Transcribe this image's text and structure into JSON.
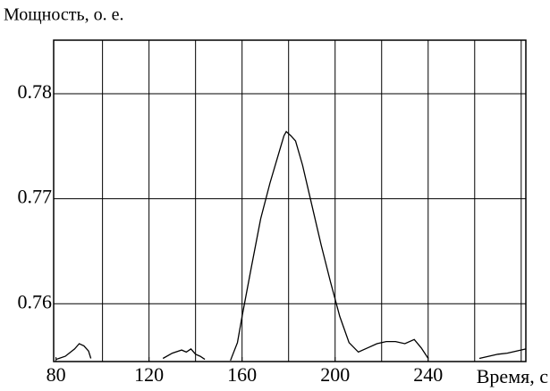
{
  "chart_data": {
    "type": "line",
    "ylabel": "Мощность, о. е.",
    "xlabel": "Время, с",
    "x": [
      80,
      84,
      88,
      90,
      92,
      94,
      95,
      null,
      126,
      130,
      134,
      136,
      138,
      140,
      142,
      144,
      null,
      155,
      158,
      160,
      164,
      168,
      172,
      176,
      178,
      179,
      181,
      183,
      186,
      190,
      194,
      198,
      202,
      206,
      210,
      214,
      218,
      222,
      226,
      230,
      234,
      237,
      240,
      null,
      262,
      266,
      270,
      274,
      278,
      282
    ],
    "series": [
      {
        "color": "#000000",
        "values": [
          0.7547,
          0.755,
          0.7557,
          0.7562,
          0.756,
          0.7555,
          0.7548,
          null,
          0.7548,
          0.7553,
          0.7556,
          0.7554,
          0.7557,
          0.7552,
          0.755,
          0.7547,
          null,
          0.7546,
          0.7563,
          0.7588,
          0.7635,
          0.7681,
          0.7715,
          0.7745,
          0.776,
          0.7764,
          0.776,
          0.7755,
          0.7732,
          0.7694,
          0.7656,
          0.7621,
          0.7588,
          0.7563,
          0.7554,
          0.7558,
          0.7562,
          0.7564,
          0.7564,
          0.7562,
          0.7566,
          0.7558,
          0.7548,
          null,
          0.7548,
          0.755,
          0.7552,
          0.7553,
          0.7555,
          0.7557
        ]
      }
    ],
    "xlim": [
      79,
      282
    ],
    "ylim": [
      0.7545,
      0.7851
    ],
    "xticks": [
      80,
      120,
      160,
      200,
      240
    ],
    "xgrid": [
      100,
      120,
      140,
      160,
      180,
      200,
      220,
      240,
      260,
      280
    ],
    "yticks": [
      0.76,
      0.77,
      0.78
    ],
    "grid": true
  }
}
